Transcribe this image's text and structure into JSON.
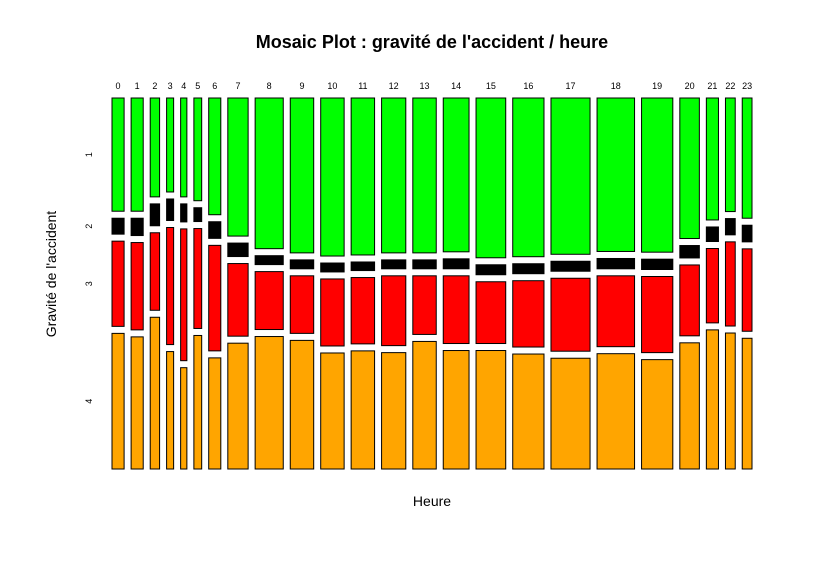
{
  "chart_data": {
    "type": "mosaic",
    "title": "Mosaic Plot : gravité de l'accident / heure",
    "xlabel": "Heure",
    "ylabel": "Gravité de l'accident",
    "categories": [
      "0",
      "1",
      "2",
      "3",
      "4",
      "5",
      "6",
      "7",
      "8",
      "9",
      "10",
      "11",
      "12",
      "13",
      "14",
      "15",
      "16",
      "17",
      "18",
      "19",
      "20",
      "21",
      "22",
      "23"
    ],
    "x_weights": [
      0.0155,
      0.0155,
      0.012,
      0.009,
      0.008,
      0.01,
      0.0155,
      0.026,
      0.036,
      0.03,
      0.03,
      0.03,
      0.031,
      0.03,
      0.033,
      0.038,
      0.04,
      0.05,
      0.048,
      0.04,
      0.025,
      0.0155,
      0.0125,
      0.0125
    ],
    "levels": [
      "1",
      "2",
      "3",
      "4"
    ],
    "level_colors": [
      "#00ff00",
      "#000000",
      "#ff0000",
      "#ffa500"
    ],
    "proportions": [
      [
        0.3235,
        0.0455,
        0.2435,
        0.3875
      ],
      [
        0.3235,
        0.0495,
        0.2495,
        0.3775
      ],
      [
        0.2825,
        0.0625,
        0.2215,
        0.4335
      ],
      [
        0.2685,
        0.0615,
        0.3345,
        0.3355
      ],
      [
        0.2825,
        0.0515,
        0.3765,
        0.2895
      ],
      [
        0.2935,
        0.0395,
        0.2855,
        0.3815
      ],
      [
        0.3335,
        0.0475,
        0.3015,
        0.3175
      ],
      [
        0.3945,
        0.0385,
        0.2075,
        0.3595
      ],
      [
        0.4305,
        0.0255,
        0.1655,
        0.3785
      ],
      [
        0.4425,
        0.0255,
        0.1645,
        0.3675
      ],
      [
        0.4515,
        0.0255,
        0.1915,
        0.3315
      ],
      [
        0.4485,
        0.0245,
        0.1895,
        0.3375
      ],
      [
        0.4425,
        0.0255,
        0.1995,
        0.3325
      ],
      [
        0.4425,
        0.0255,
        0.1675,
        0.3645
      ],
      [
        0.4395,
        0.0285,
        0.1935,
        0.3385
      ],
      [
        0.4565,
        0.0285,
        0.1765,
        0.3385
      ],
      [
        0.4535,
        0.0285,
        0.1895,
        0.3285
      ],
      [
        0.4465,
        0.0285,
        0.2085,
        0.3165
      ],
      [
        0.4385,
        0.0295,
        0.2025,
        0.3295
      ],
      [
        0.4405,
        0.0295,
        0.2175,
        0.3125
      ],
      [
        0.4015,
        0.0355,
        0.2025,
        0.3605
      ],
      [
        0.3485,
        0.0415,
        0.2125,
        0.3975
      ],
      [
        0.3245,
        0.0465,
        0.2405,
        0.3885
      ],
      [
        0.3435,
        0.0475,
        0.2355,
        0.3735
      ]
    ]
  }
}
